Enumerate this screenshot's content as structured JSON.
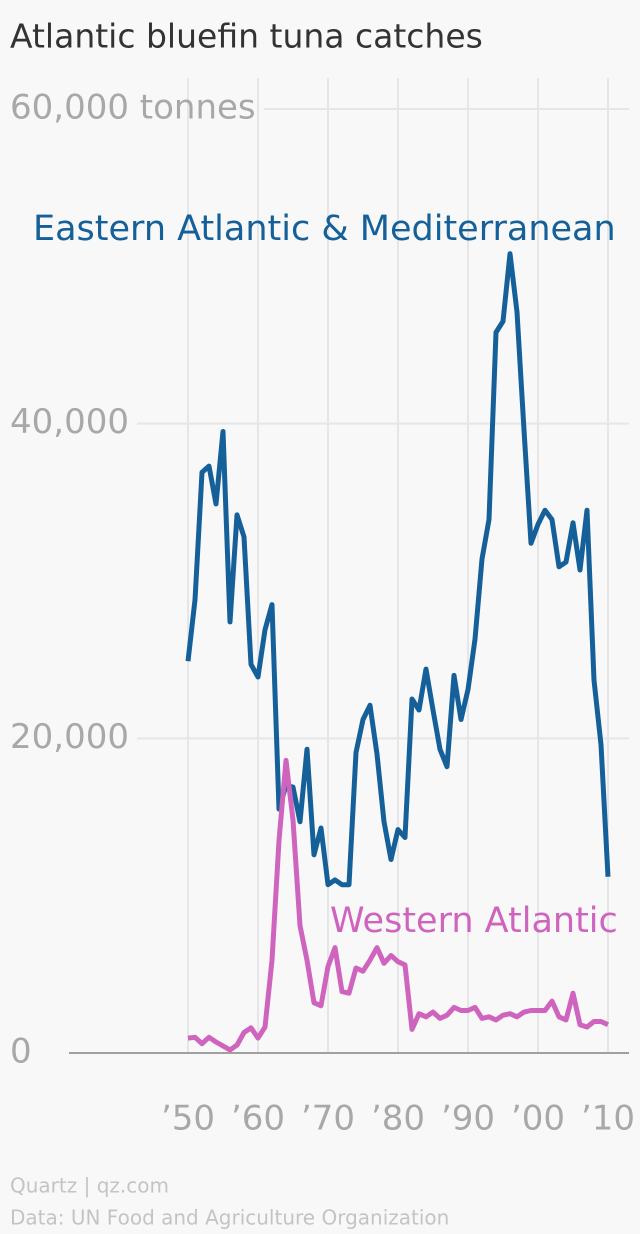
{
  "chart_data": {
    "type": "line",
    "title": "Atlantic bluefin tuna catches",
    "x": [
      1950,
      1951,
      1952,
      1953,
      1954,
      1955,
      1956,
      1957,
      1958,
      1959,
      1960,
      1961,
      1962,
      1963,
      1964,
      1965,
      1966,
      1967,
      1968,
      1969,
      1970,
      1971,
      1972,
      1973,
      1974,
      1975,
      1976,
      1977,
      1978,
      1979,
      1980,
      1981,
      1982,
      1983,
      1984,
      1985,
      1986,
      1987,
      1988,
      1989,
      1990,
      1991,
      1992,
      1993,
      1994,
      1995,
      1996,
      1997,
      1998,
      1999,
      2000,
      2001,
      2002,
      2003,
      2004,
      2005,
      2006,
      2007,
      2008,
      2009,
      2010
    ],
    "series": [
      {
        "name": "Eastern Atlantic & Mediterranean",
        "color": "#16609a",
        "values": [
          24900,
          28800,
          36900,
          37300,
          34900,
          39500,
          27400,
          34200,
          32800,
          24700,
          23900,
          26900,
          28500,
          15500,
          17000,
          16900,
          14700,
          19300,
          12600,
          14300,
          10700,
          11000,
          10700,
          10700,
          19100,
          21200,
          22100,
          19000,
          14700,
          12300,
          14200,
          13700,
          22500,
          21800,
          24400,
          21800,
          19300,
          18200,
          24000,
          21200,
          23100,
          26300,
          31400,
          33900,
          45800,
          46500,
          50800,
          47100,
          39600,
          32400,
          33600,
          34500,
          33900,
          30900,
          31200,
          33700,
          30700,
          34500,
          23700,
          19600,
          11200
        ]
      },
      {
        "name": "Western Atlantic",
        "color": "#cf64bf",
        "values": [
          950,
          1000,
          600,
          1000,
          700,
          450,
          200,
          500,
          1300,
          1600,
          950,
          1650,
          5900,
          13500,
          18600,
          14800,
          8100,
          5900,
          3200,
          3000,
          5500,
          6700,
          3900,
          3800,
          5400,
          5200,
          5900,
          6700,
          5700,
          6200,
          5800,
          5600,
          1500,
          2500,
          2300,
          2600,
          2200,
          2400,
          2900,
          2700,
          2700,
          2900,
          2200,
          2300,
          2100,
          2400,
          2500,
          2300,
          2600,
          2700,
          2700,
          2700,
          3300,
          2300,
          2100,
          3800,
          1800,
          1650,
          2000,
          2000,
          1800
        ]
      }
    ],
    "xlim": [
      1933,
      2013
    ],
    "xticks": [
      {
        "value": 1950,
        "label": "’50"
      },
      {
        "value": 1960,
        "label": "’60"
      },
      {
        "value": 1970,
        "label": "’70"
      },
      {
        "value": 1980,
        "label": "’80"
      },
      {
        "value": 1990,
        "label": "’90"
      },
      {
        "value": 2000,
        "label": "’00"
      },
      {
        "value": 2010,
        "label": "’10"
      }
    ],
    "ylim": [
      0,
      60000
    ],
    "yticks": [
      {
        "value": 0,
        "label": "0"
      },
      {
        "value": 20000,
        "label": "20,000"
      },
      {
        "value": 40000,
        "label": "40,000"
      },
      {
        "value": 60000,
        "label": "60,000 tonnes"
      }
    ],
    "grid": true,
    "credit": "Quartz | qz.com",
    "source": "Data: UN Food and Agriculture Organization"
  }
}
